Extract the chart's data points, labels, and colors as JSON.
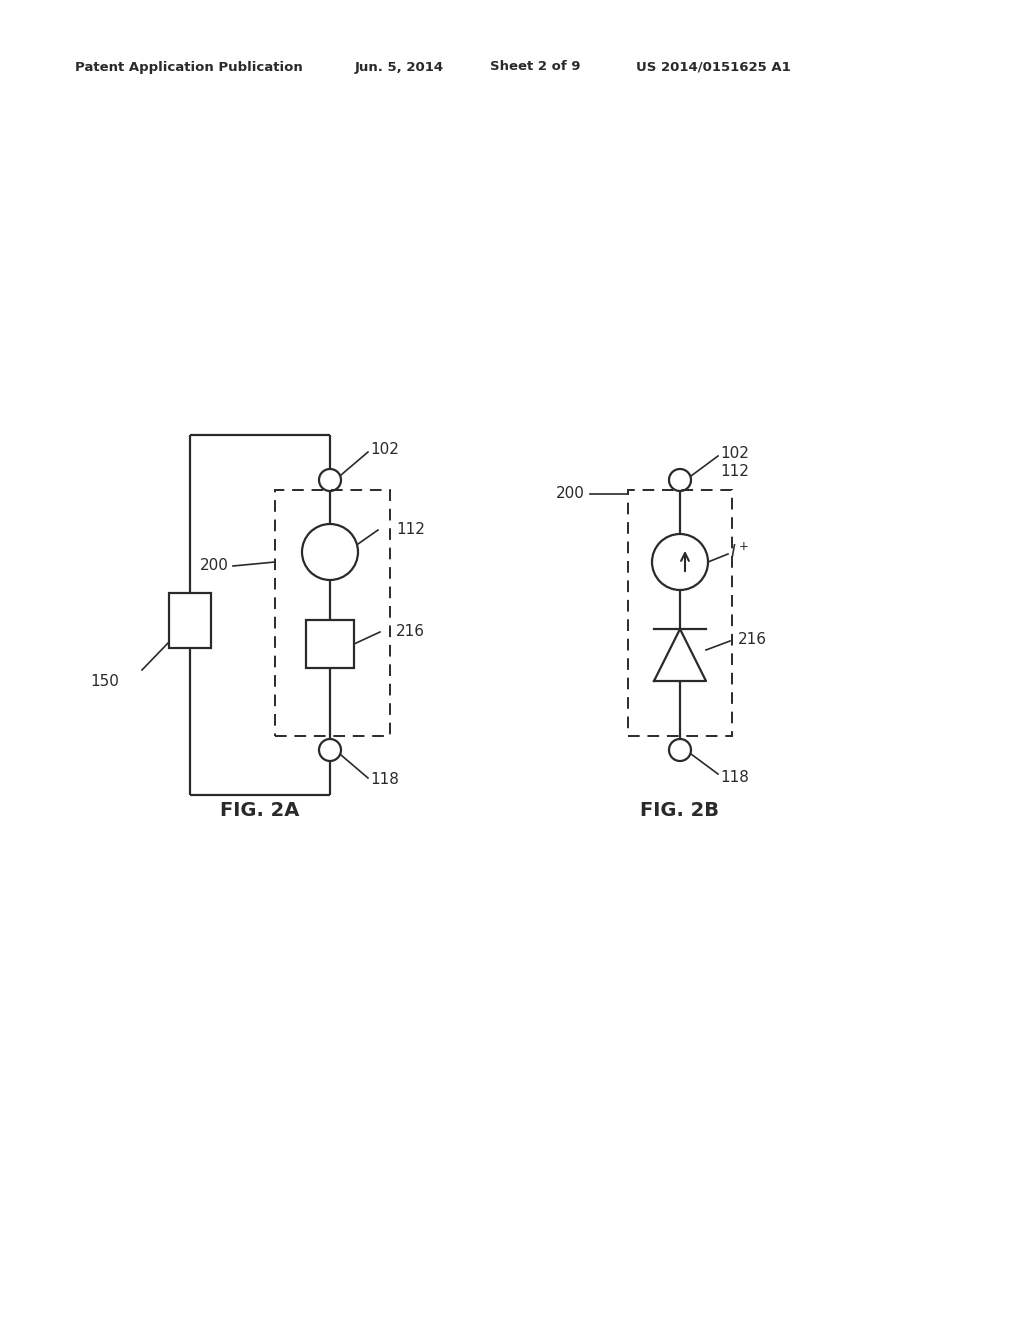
{
  "bg_color": "#ffffff",
  "header_text": "Patent Application Publication",
  "header_date": "Jun. 5, 2014",
  "header_sheet": "Sheet 2 of 9",
  "header_patent": "US 2014/0151625 A1",
  "fig2a_label": "FIG. 2A",
  "fig2b_label": "FIG. 2B",
  "line_color": "#2a2a2a",
  "line_width": 1.6,
  "font_size_label": 11,
  "font_size_fig": 14,
  "font_size_header": 9.5
}
